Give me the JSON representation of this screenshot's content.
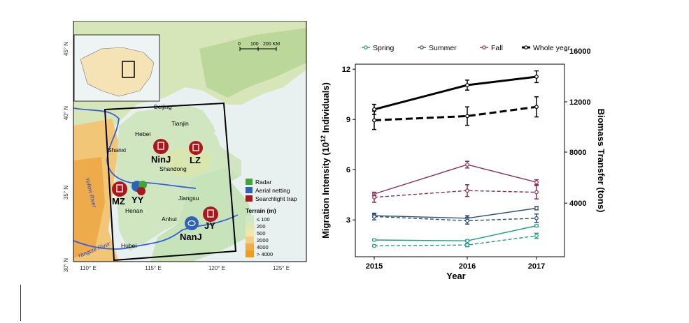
{
  "map": {
    "lat_labels": [
      "45° N",
      "40° N",
      "35° N",
      "30° N"
    ],
    "lon_labels": [
      "110° E",
      "115° E",
      "120° E",
      "125° E"
    ],
    "scale_labels": [
      "0",
      "100",
      "200 KM"
    ],
    "region_labels": [
      "Beijing",
      "Tianjin",
      "Hebei",
      "Shanxi",
      "Shandong",
      "Henan",
      "Jiangsu",
      "Anhui",
      "Hubei"
    ],
    "river_labels": [
      "Yellow River",
      "Yangtze River"
    ],
    "sites": [
      {
        "code": "NinJ",
        "method": "searchlight"
      },
      {
        "code": "LZ",
        "method": "searchlight"
      },
      {
        "code": "MZ",
        "method": "searchlight"
      },
      {
        "code": "YY",
        "method": "radar-netting"
      },
      {
        "code": "NanJ",
        "method": "aerial-netting"
      },
      {
        "code": "JY",
        "method": "searchlight"
      }
    ],
    "legend": {
      "radar": "Radar",
      "aerial": "Aerial netting",
      "searchlight": "Searchlight trap",
      "terrain_title": "Terrain (m)",
      "terrain_levels": [
        "≤ 100",
        "200",
        "500",
        "2000",
        "4000",
        "> 4000"
      ],
      "terrain_colors": [
        "#cfe8c8",
        "#dfe8b0",
        "#f2e6a8",
        "#f3cf86",
        "#f0ac4a",
        "#ed9c1c"
      ]
    }
  },
  "chart_data": {
    "type": "line",
    "categories": [
      "2015",
      "2016",
      "2017"
    ],
    "xlabel": "Year",
    "ylabel": "Migration Intensity (10^12 Individuals)",
    "ylabel_parts": {
      "pre": "Migration Intensity (10",
      "sup": "12",
      "post": " Individuals)"
    },
    "y2label": "Biomass Transfer (tons)",
    "ylim": [
      0.8,
      12.3
    ],
    "y_ticks": [
      3,
      6,
      9,
      12
    ],
    "y2_ticks": [
      4000,
      8000,
      12000,
      16000
    ],
    "y2_map_note": "",
    "legend": [
      "Spring",
      "Summer",
      "Fall",
      "Whole year"
    ],
    "series": [
      {
        "name": "Spring",
        "color": "#1a9e84",
        "intensity": [
          1.8,
          1.75,
          2.65
        ],
        "intensity_err": [
          0.05,
          0.05,
          0.05
        ],
        "biomass": [
          1.45,
          1.5,
          2.05
        ],
        "biomass_err": [
          0.05,
          0.1,
          0.15
        ]
      },
      {
        "name": "Summer",
        "color": "#2e4d7b",
        "intensity": [
          3.25,
          3.1,
          3.7
        ],
        "intensity_err": [
          0.1,
          0.15,
          0.1
        ],
        "biomass": [
          3.2,
          2.95,
          3.1
        ],
        "biomass_err": [
          0.2,
          0.2,
          0.25
        ]
      },
      {
        "name": "Fall",
        "color": "#8b2e4f",
        "intensity": [
          4.55,
          6.3,
          5.25
        ],
        "intensity_err": [
          0.1,
          0.2,
          0.15
        ],
        "biomass": [
          4.35,
          4.75,
          4.65
        ],
        "biomass_err": [
          0.3,
          0.35,
          0.4
        ]
      },
      {
        "name": "Whole year",
        "color": "#000000",
        "intensity": [
          9.6,
          11.05,
          11.55
        ],
        "intensity_err": [
          0.3,
          0.3,
          0.35
        ],
        "biomass": [
          8.95,
          9.2,
          9.75
        ],
        "biomass_err": [
          0.55,
          0.55,
          0.6
        ]
      }
    ]
  }
}
